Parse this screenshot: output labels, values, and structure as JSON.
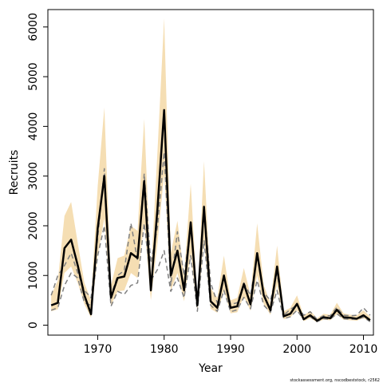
{
  "chart_data": {
    "type": "line",
    "title": "",
    "xlabel": "Year",
    "ylabel": "Recruits",
    "xlim": [
      1962.5,
      2011.5
    ],
    "ylim": [
      -200,
      6350
    ],
    "x_ticks": [
      1970,
      1980,
      1990,
      2000,
      2010
    ],
    "y_ticks": [
      0,
      1000,
      2000,
      3000,
      4000,
      5000,
      6000
    ],
    "grid": false,
    "legend": "none",
    "footnote": "stockassessment.org, nscodbeststock, r2562",
    "colors": {
      "band": "#f5deb3",
      "estimate": "#000000",
      "alternative": "#808080"
    },
    "x": [
      1963,
      1964,
      1965,
      1966,
      1967,
      1968,
      1969,
      1970,
      1971,
      1972,
      1973,
      1974,
      1975,
      1976,
      1977,
      1978,
      1979,
      1980,
      1981,
      1982,
      1983,
      1984,
      1985,
      1986,
      1987,
      1988,
      1989,
      1990,
      1991,
      1992,
      1993,
      1994,
      1995,
      1996,
      1997,
      1998,
      1999,
      2000,
      2001,
      2002,
      2003,
      2004,
      2005,
      2006,
      2007,
      2008,
      2009,
      2010,
      2011
    ],
    "series": [
      {
        "role": "estimate",
        "style": "solid",
        "values": [
          400,
          450,
          1550,
          1720,
          1200,
          600,
          220,
          1950,
          3000,
          550,
          950,
          980,
          1450,
          1350,
          2900,
          700,
          2350,
          4330,
          1000,
          1500,
          700,
          2070,
          400,
          2380,
          480,
          350,
          1000,
          350,
          380,
          830,
          420,
          1450,
          600,
          300,
          1180,
          180,
          230,
          430,
          120,
          200,
          90,
          160,
          140,
          310,
          160,
          150,
          130,
          200,
          100
        ]
      },
      {
        "role": "upper",
        "style": "dashed",
        "values": [
          600,
          1000,
          1200,
          1450,
          1050,
          700,
          550,
          1750,
          3150,
          600,
          1000,
          1100,
          2050,
          1300,
          3050,
          1250,
          1980,
          3480,
          800,
          1880,
          1000,
          2000,
          450,
          2400,
          850,
          450,
          1000,
          420,
          450,
          850,
          600,
          1400,
          650,
          500,
          1050,
          200,
          320,
          400,
          200,
          270,
          120,
          190,
          190,
          360,
          200,
          190,
          200,
          350,
          200
        ]
      },
      {
        "role": "lower",
        "style": "dashed",
        "values": [
          300,
          350,
          800,
          1050,
          950,
          450,
          400,
          1400,
          2000,
          380,
          680,
          620,
          800,
          850,
          2050,
          900,
          1120,
          1500,
          680,
          950,
          550,
          1400,
          280,
          1700,
          400,
          280,
          700,
          270,
          310,
          560,
          330,
          900,
          400,
          260,
          700,
          130,
          170,
          300,
          110,
          170,
          70,
          130,
          120,
          230,
          130,
          120,
          120,
          160,
          70
        ]
      },
      {
        "role": "band-upper",
        "style": "fill",
        "values": [
          600,
          900,
          2200,
          2480,
          1650,
          850,
          500,
          2800,
          4380,
          800,
          1350,
          1400,
          2000,
          1900,
          4150,
          1000,
          3500,
          6180,
          1450,
          2100,
          1000,
          2850,
          500,
          3300,
          750,
          550,
          1400,
          500,
          550,
          1150,
          600,
          2050,
          800,
          450,
          1600,
          280,
          350,
          600,
          190,
          290,
          140,
          230,
          210,
          450,
          240,
          210,
          200,
          300,
          170
        ]
      },
      {
        "role": "band-lower",
        "style": "fill",
        "values": [
          280,
          320,
          1050,
          1180,
          850,
          420,
          150,
          1400,
          2150,
          400,
          680,
          700,
          1050,
          950,
          2050,
          500,
          1650,
          3050,
          700,
          1050,
          480,
          1450,
          280,
          1700,
          330,
          250,
          700,
          240,
          260,
          580,
          290,
          1000,
          420,
          210,
          820,
          120,
          160,
          300,
          80,
          140,
          60,
          110,
          100,
          220,
          110,
          100,
          90,
          140,
          70
        ]
      }
    ]
  }
}
